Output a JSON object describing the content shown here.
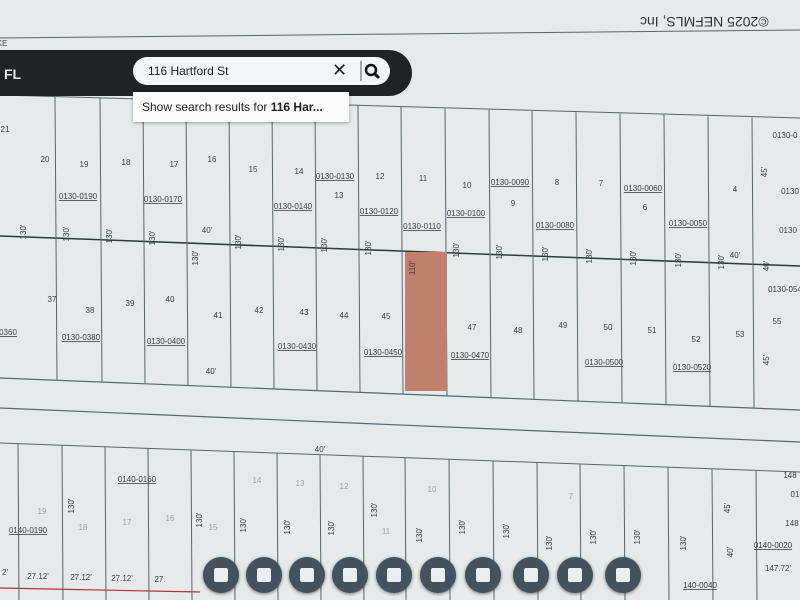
{
  "header": {
    "app_label": "FL",
    "copyright": "©2025 NEFMLS, Inc"
  },
  "search": {
    "query": "116 Hartford St",
    "suggestion_prefix": "Show search results for ",
    "suggestion_query": "116 Har..."
  },
  "map": {
    "labels": [
      "KE",
      "21",
      "20",
      "19",
      "18",
      "17",
      "16",
      "15",
      "14",
      "13",
      "12",
      "11",
      "10",
      "9",
      "8",
      "7",
      "6",
      "4",
      "0130-0190",
      "0130-0170",
      "0130-0140",
      "0130-0130",
      "0130-0120",
      "0130-0110",
      "0130-0100",
      "0130-0090",
      "0130-0080",
      "0130-0060",
      "0130-0050",
      "0130-0",
      "0130",
      "0130",
      "0130-054",
      "130'",
      "130'",
      "130'",
      "130'",
      "130'",
      "130'",
      "130'",
      "130'",
      "130'",
      "110'",
      "130'",
      "130'",
      "130'",
      "130'",
      "130'",
      "130'",
      "130'",
      "40'",
      "40'",
      "45'",
      "40'",
      "45'",
      "37",
      "38",
      "39",
      "40",
      "41",
      "42",
      "43",
      "44",
      "45",
      "47",
      "48",
      "49",
      "50",
      "51",
      "52",
      "53",
      "55",
      "0360",
      "0130-0380",
      "0130-0400",
      "0130-0430",
      "0130-0450",
      "0130-0470",
      "0130-0500",
      "0130-0520",
      "40'",
      "40'",
      "0140-0160",
      "19",
      "18",
      "17",
      "16",
      "15",
      "14",
      "13",
      "12",
      "11",
      "10",
      "7",
      "0140-0190",
      "130'",
      "130'",
      "130'",
      "130'",
      "130'",
      "130'",
      "130'",
      "130'",
      "130'",
      "130'",
      "130'",
      "130'",
      "130'",
      "45'",
      "40'",
      "148",
      "01",
      "148",
      "0140-0020",
      "147.72'",
      "140-0040",
      "2'",
      "27.12'",
      "27.12'",
      "27.12'",
      "27."
    ]
  }
}
